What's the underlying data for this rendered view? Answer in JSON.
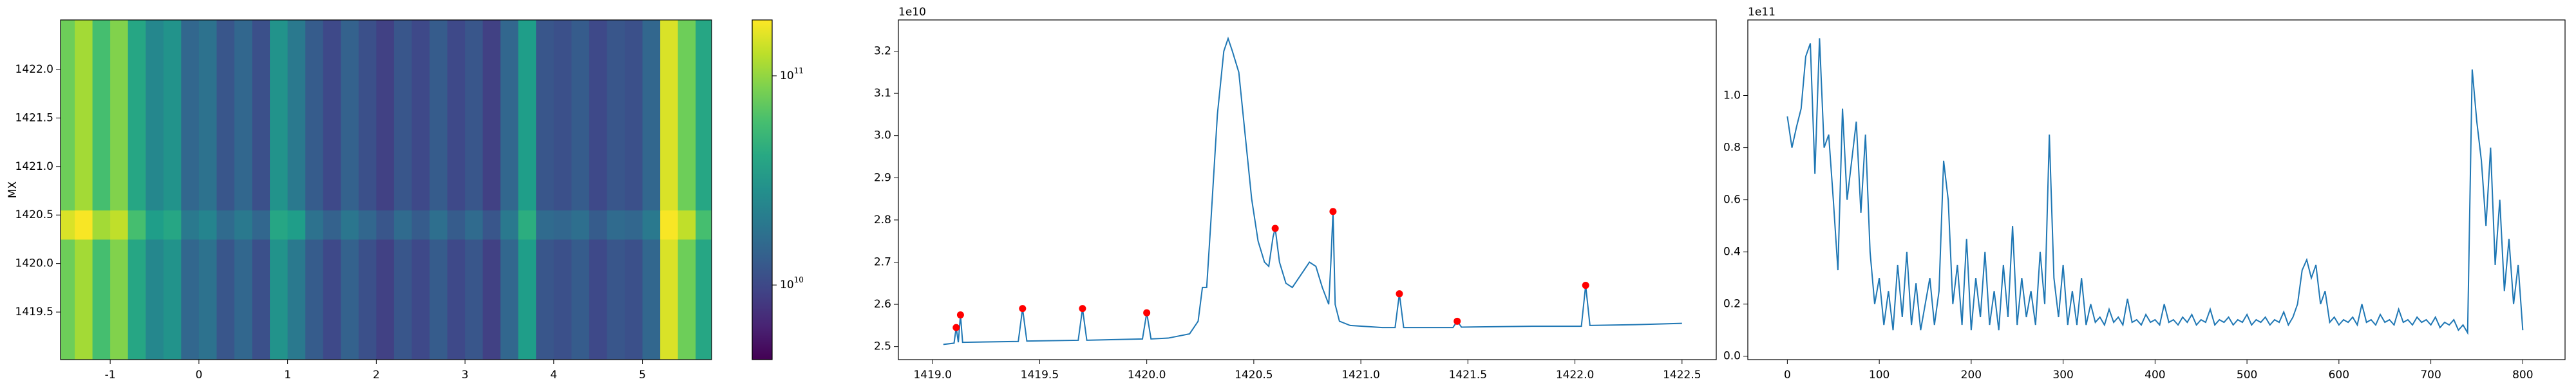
{
  "chart_data": [
    {
      "type": "heatmap",
      "ylabel": "MX",
      "xlim": [
        -1.56,
        5.78
      ],
      "ylim": [
        1419.01,
        1422.51
      ],
      "xticks": [
        -1,
        0,
        1,
        2,
        3,
        4,
        5
      ],
      "yticks": [
        1419.5,
        {
          "value": 1420.0,
          "label": "1420.0"
        },
        1420.5,
        {
          "value": 1421.0,
          "label": "1421.0"
        },
        1421.5,
        {
          "value": 1422.0,
          "label": "1422.0"
        }
      ],
      "x_edges": [
        -1.56,
        -1.4,
        -1.2,
        -1.0,
        -0.8,
        -0.6,
        -0.4,
        -0.2,
        0.0,
        0.2,
        0.4,
        0.6,
        0.8,
        1.0,
        1.2,
        1.4,
        1.6,
        1.8,
        2.0,
        2.2,
        2.4,
        2.6,
        2.8,
        3.0,
        3.2,
        3.4,
        3.6,
        3.8,
        4.0,
        4.2,
        4.4,
        4.6,
        4.8,
        5.0,
        5.2,
        5.4,
        5.6,
        5.78
      ],
      "y_edges": [
        1419.01,
        1420.25,
        1420.55,
        1422.51
      ],
      "z": [
        [
          80000000000.0,
          110000000000.0,
          60000000000.0,
          90000000000.0,
          40000000000.0,
          25000000000.0,
          30000000000.0,
          15000000000.0,
          18000000000.0,
          12000000000.0,
          15000000000.0,
          11000000000.0,
          30000000000.0,
          20000000000.0,
          13000000000.0,
          10000000000.0,
          14000000000.0,
          11000000000.0,
          9000000000.0,
          12000000000.0,
          10000000000.0,
          13000000000.0,
          10000000000.0,
          12000000000.0,
          9000000000.0,
          15000000000.0,
          35000000000.0,
          12000000000.0,
          11000000000.0,
          13000000000.0,
          10000000000.0,
          12000000000.0,
          11000000000.0,
          15000000000.0,
          150000000000.0,
          80000000000.0,
          40000000000.0
        ],
        [
          150000000000.0,
          180000000000.0,
          110000000000.0,
          130000000000.0,
          60000000000.0,
          35000000000.0,
          40000000000.0,
          20000000000.0,
          24000000000.0,
          16000000000.0,
          20000000000.0,
          15000000000.0,
          40000000000.0,
          35000000000.0,
          18000000000.0,
          14000000000.0,
          19000000000.0,
          15000000000.0,
          12000000000.0,
          16000000000.0,
          13000000000.0,
          17000000000.0,
          13000000000.0,
          16000000000.0,
          12000000000.0,
          20000000000.0,
          45000000000.0,
          16000000000.0,
          15000000000.0,
          17000000000.0,
          13000000000.0,
          16000000000.0,
          15000000000.0,
          20000000000.0,
          180000000000.0,
          130000000000.0,
          60000000000.0
        ],
        [
          80000000000.0,
          110000000000.0,
          60000000000.0,
          90000000000.0,
          40000000000.0,
          25000000000.0,
          30000000000.0,
          15000000000.0,
          18000000000.0,
          12000000000.0,
          15000000000.0,
          11000000000.0,
          30000000000.0,
          20000000000.0,
          13000000000.0,
          10000000000.0,
          14000000000.0,
          11000000000.0,
          9000000000.0,
          12000000000.0,
          10000000000.0,
          13000000000.0,
          10000000000.0,
          12000000000.0,
          9000000000.0,
          15000000000.0,
          35000000000.0,
          12000000000.0,
          11000000000.0,
          13000000000.0,
          10000000000.0,
          12000000000.0,
          11000000000.0,
          15000000000.0,
          150000000000.0,
          80000000000.0,
          40000000000.0
        ]
      ],
      "clim": [
        4400000000.0,
        185000000000.0
      ],
      "log_color": true,
      "colormap": "viridis",
      "cticks": [
        {
          "value": 10000000000.0,
          "label": "10",
          "exponent": "10"
        },
        {
          "value": 100000000000.0,
          "label": "10",
          "exponent": "11"
        }
      ]
    },
    {
      "type": "line",
      "offset_text": "1e10",
      "xlim": [
        1418.84,
        1422.66
      ],
      "ylim": [
        2.469,
        3.274
      ],
      "xticks": [
        {
          "value": 1419.0,
          "label": "1419.0"
        },
        1419.5,
        {
          "value": 1420.0,
          "label": "1420.0"
        },
        1420.5,
        {
          "value": 1421.0,
          "label": "1421.0"
        },
        1421.5,
        {
          "value": 1422.0,
          "label": "1422.0"
        },
        1422.5
      ],
      "yticks": [
        2.5,
        2.6,
        2.7,
        2.8,
        2.9,
        {
          "value": 3.0,
          "label": "3.0"
        },
        3.1,
        3.2
      ],
      "series": [
        {
          "color": "#1f77b4",
          "mode": "line",
          "x": [
            1419.05,
            1419.1,
            1419.11,
            1419.12,
            1419.13,
            1419.14,
            1419.4,
            1419.42,
            1419.44,
            1419.68,
            1419.7,
            1419.72,
            1419.98,
            1420.0,
            1420.02,
            1420.1,
            1420.2,
            1420.24,
            1420.26,
            1420.28,
            1420.3,
            1420.33,
            1420.36,
            1420.38,
            1420.4,
            1420.43,
            1420.46,
            1420.49,
            1420.52,
            1420.55,
            1420.57,
            1420.59,
            1420.6,
            1420.62,
            1420.65,
            1420.68,
            1420.72,
            1420.76,
            1420.79,
            1420.82,
            1420.85,
            1420.86,
            1420.87,
            1420.88,
            1420.9,
            1420.95,
            1421.1,
            1421.16,
            1421.18,
            1421.2,
            1421.43,
            1421.45,
            1421.47,
            1421.8,
            1422.03,
            1422.05,
            1422.07,
            1422.3,
            1422.5
          ],
          "values": [
            2.505,
            2.508,
            2.545,
            2.51,
            2.575,
            2.51,
            2.512,
            2.59,
            2.513,
            2.515,
            2.59,
            2.515,
            2.518,
            2.58,
            2.518,
            2.52,
            2.53,
            2.56,
            2.64,
            2.64,
            2.8,
            3.05,
            3.2,
            3.23,
            3.2,
            3.15,
            3.0,
            2.85,
            2.75,
            2.7,
            2.69,
            2.76,
            2.78,
            2.7,
            2.65,
            2.64,
            2.67,
            2.7,
            2.69,
            2.64,
            2.6,
            2.7,
            2.82,
            2.6,
            2.56,
            2.55,
            2.545,
            2.545,
            2.625,
            2.545,
            2.545,
            2.56,
            2.546,
            2.548,
            2.548,
            2.645,
            2.55,
            2.552,
            2.555
          ]
        },
        {
          "color": "#ff0000",
          "mode": "markers",
          "x": [
            1419.11,
            1419.13,
            1419.42,
            1419.7,
            1420.0,
            1420.6,
            1420.87,
            1421.18,
            1421.45,
            1422.05
          ],
          "values": [
            2.545,
            2.575,
            2.59,
            2.59,
            2.58,
            2.78,
            2.82,
            2.625,
            2.56,
            2.645
          ]
        }
      ]
    },
    {
      "type": "line",
      "offset_text": "1e11",
      "xlim": [
        -43,
        846
      ],
      "ylim": [
        -0.013,
        1.29
      ],
      "xticks": [
        0,
        100,
        200,
        300,
        400,
        500,
        600,
        700,
        800
      ],
      "yticks": [
        {
          "value": 0.0,
          "label": "0.0"
        },
        0.2,
        0.4,
        0.6,
        0.8,
        {
          "value": 1.0,
          "label": "1.0"
        }
      ],
      "series": [
        {
          "color": "#1f77b4",
          "mode": "line",
          "x": [
            0,
            5,
            10,
            15,
            20,
            25,
            30,
            35,
            40,
            45,
            50,
            55,
            60,
            65,
            70,
            75,
            80,
            85,
            90,
            95,
            100,
            105,
            110,
            115,
            120,
            125,
            130,
            135,
            140,
            145,
            150,
            155,
            160,
            165,
            170,
            175,
            180,
            185,
            190,
            195,
            200,
            205,
            210,
            215,
            220,
            225,
            230,
            235,
            240,
            245,
            250,
            255,
            260,
            265,
            270,
            275,
            280,
            285,
            290,
            295,
            300,
            305,
            310,
            315,
            320,
            325,
            330,
            335,
            340,
            345,
            350,
            355,
            360,
            365,
            370,
            375,
            380,
            385,
            390,
            395,
            400,
            405,
            410,
            415,
            420,
            425,
            430,
            435,
            440,
            445,
            450,
            455,
            460,
            465,
            470,
            475,
            480,
            485,
            490,
            495,
            500,
            505,
            510,
            515,
            520,
            525,
            530,
            535,
            540,
            545,
            550,
            555,
            560,
            565,
            570,
            575,
            580,
            585,
            590,
            595,
            600,
            605,
            610,
            615,
            620,
            625,
            630,
            635,
            640,
            645,
            650,
            655,
            660,
            665,
            670,
            675,
            680,
            685,
            690,
            695,
            700,
            705,
            710,
            715,
            720,
            725,
            730,
            735,
            740,
            745,
            750,
            755,
            760,
            765,
            770,
            775,
            780,
            785,
            790,
            795,
            800
          ],
          "values": [
            0.92,
            0.8,
            0.88,
            0.95,
            1.15,
            1.2,
            0.7,
            1.22,
            0.8,
            0.85,
            0.6,
            0.33,
            0.95,
            0.6,
            0.75,
            0.9,
            0.55,
            0.85,
            0.4,
            0.2,
            0.3,
            0.12,
            0.25,
            0.1,
            0.35,
            0.15,
            0.4,
            0.12,
            0.28,
            0.1,
            0.2,
            0.3,
            0.12,
            0.25,
            0.75,
            0.6,
            0.2,
            0.35,
            0.12,
            0.45,
            0.1,
            0.3,
            0.15,
            0.4,
            0.12,
            0.25,
            0.1,
            0.35,
            0.15,
            0.5,
            0.12,
            0.3,
            0.15,
            0.25,
            0.12,
            0.4,
            0.2,
            0.85,
            0.3,
            0.15,
            0.35,
            0.12,
            0.25,
            0.12,
            0.3,
            0.12,
            0.2,
            0.13,
            0.15,
            0.12,
            0.18,
            0.13,
            0.15,
            0.12,
            0.22,
            0.13,
            0.14,
            0.12,
            0.16,
            0.13,
            0.14,
            0.12,
            0.2,
            0.13,
            0.14,
            0.12,
            0.15,
            0.13,
            0.16,
            0.12,
            0.14,
            0.13,
            0.18,
            0.12,
            0.14,
            0.13,
            0.15,
            0.12,
            0.14,
            0.13,
            0.16,
            0.12,
            0.14,
            0.13,
            0.15,
            0.12,
            0.14,
            0.13,
            0.17,
            0.12,
            0.15,
            0.2,
            0.33,
            0.37,
            0.3,
            0.35,
            0.2,
            0.25,
            0.13,
            0.15,
            0.12,
            0.14,
            0.13,
            0.15,
            0.12,
            0.2,
            0.13,
            0.14,
            0.12,
            0.16,
            0.13,
            0.14,
            0.12,
            0.18,
            0.13,
            0.14,
            0.12,
            0.15,
            0.13,
            0.14,
            0.12,
            0.15,
            0.11,
            0.13,
            0.12,
            0.14,
            0.1,
            0.12,
            0.09,
            1.1,
            0.9,
            0.75,
            0.5,
            0.8,
            0.35,
            0.6,
            0.25,
            0.45,
            0.2,
            0.35,
            0.1
          ]
        }
      ]
    }
  ]
}
